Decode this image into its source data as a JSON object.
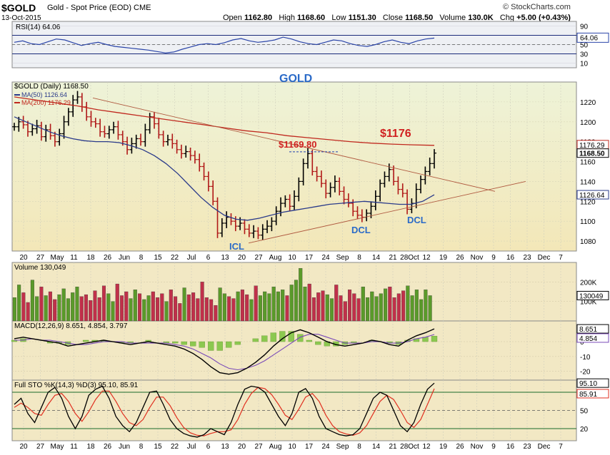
{
  "header": {
    "symbol": "$GOLD",
    "description": "Gold - Spot Price (EOD)",
    "exchange": "CME",
    "date": "13-Oct-2015",
    "brand": "© StockCharts.com",
    "open_label": "Open",
    "open": "1162.80",
    "high_label": "High",
    "high": "1168.60",
    "low_label": "Low",
    "low": "1151.30",
    "close_label": "Close",
    "close": "1168.50",
    "volume_label": "Volume",
    "volume": "130.0K",
    "chg_label": "Chg",
    "chg": "+5.00 (+0.43%)"
  },
  "colors": {
    "price_bg": "#f2efc8",
    "panel_bg": "#f2e8c4",
    "up_bar": "#5a9a2a",
    "down_bar": "#c0304a",
    "ma50": "#2a3a8a",
    "ma200": "#c0281e",
    "annotation_blue": "#2a6ac8",
    "annotation_red": "#d02020",
    "trendline": "#b05a40"
  },
  "chart_data": [
    {
      "type": "line",
      "panel": "rsi",
      "legend": "RSI(14) 64.06",
      "value_label": "64.06",
      "y_ticks": [
        "90",
        "70",
        "50",
        "30",
        "10"
      ],
      "ylim": [
        0,
        100
      ],
      "levels": [
        70,
        30
      ],
      "last": 64.06
    },
    {
      "type": "ohlc",
      "panel": "price",
      "legend": {
        "symbol": "$GOLD (Daily) 1168.50",
        "ma50": "MA(50) 1126.64",
        "ma200": "MA(200) 1176.29"
      },
      "y_ticks": [
        "1220",
        "1200",
        "1180",
        "1160",
        "1140",
        "1120",
        "1100",
        "1080"
      ],
      "ylim": [
        1070,
        1240
      ],
      "right_labels": [
        "1176.29",
        "1168.50",
        "1126.64"
      ],
      "annotations": {
        "title": "GOLD",
        "ma200_value": "$1176",
        "peak": "$1169.80",
        "icl": "ICL",
        "dcl1": "DCL",
        "dcl2": "DCL"
      },
      "close_path": [
        1195,
        1200,
        1197,
        1190,
        1193,
        1196,
        1185,
        1192,
        1186,
        1180,
        1188,
        1200,
        1210,
        1222,
        1225,
        1215,
        1205,
        1200,
        1198,
        1190,
        1188,
        1192,
        1195,
        1187,
        1180,
        1172,
        1178,
        1183,
        1180,
        1192,
        1205,
        1198,
        1187,
        1180,
        1182,
        1178,
        1172,
        1168,
        1170,
        1166,
        1162,
        1155,
        1145,
        1135,
        1120,
        1088,
        1098,
        1104,
        1100,
        1095,
        1098,
        1092,
        1088,
        1090,
        1086,
        1092,
        1095,
        1100,
        1110,
        1118,
        1122,
        1115,
        1125,
        1140,
        1158,
        1168,
        1150,
        1145,
        1138,
        1128,
        1134,
        1140,
        1130,
        1122,
        1118,
        1110,
        1106,
        1104,
        1108,
        1115,
        1125,
        1138,
        1145,
        1152,
        1140,
        1132,
        1128,
        1112,
        1118,
        1132,
        1142,
        1150,
        1158,
        1168.5
      ],
      "ma50_path": [
        1205,
        1200,
        1195,
        1190,
        1186,
        1183,
        1181,
        1180,
        1180,
        1179,
        1176,
        1172,
        1166,
        1158,
        1148,
        1136,
        1124,
        1114,
        1106,
        1102,
        1101,
        1103,
        1106,
        1109,
        1111,
        1113,
        1115,
        1117,
        1118,
        1119,
        1120,
        1119,
        1118,
        1117,
        1117,
        1120,
        1126.6
      ],
      "ma200_path": [
        1225,
        1222,
        1219,
        1216,
        1212,
        1209,
        1206,
        1203,
        1200,
        1197,
        1194,
        1191,
        1189,
        1186,
        1184,
        1182,
        1180,
        1178.5,
        1177.5,
        1176.8,
        1176.3
      ],
      "x_labels": [
        "20",
        "27",
        "May",
        "11",
        "18",
        "26",
        "Jun",
        "8",
        "15",
        "22",
        "Jul",
        "6",
        "13",
        "20",
        "27",
        "Aug",
        "10",
        "17",
        "24",
        "Sep",
        "8",
        "14",
        "21",
        "28Oct",
        "12",
        "19",
        "26",
        "Nov",
        "9",
        "16",
        "23",
        "Dec",
        "7"
      ]
    },
    {
      "type": "bar",
      "panel": "volume",
      "legend": "Volume 130,049",
      "value_label": "130049",
      "y_ticks": [
        "200K",
        "100K"
      ],
      "ylim": [
        0,
        300000
      ],
      "values": [
        120000,
        185000,
        145000,
        95000,
        210000,
        125000,
        175000,
        130000,
        150000,
        110000,
        135000,
        165000,
        115000,
        145000,
        175000,
        125000,
        135000,
        105000,
        155000,
        120000,
        180000,
        140000,
        100000,
        190000,
        130000,
        150000,
        115000,
        160000,
        140000,
        110000,
        130000,
        150000,
        120000,
        140000,
        100000,
        160000,
        125000,
        90000,
        170000,
        135000,
        145000,
        115000,
        200000,
        120000,
        110000,
        80000,
        170000,
        140000,
        125000,
        115000,
        150000,
        160000,
        135000,
        110000,
        180000,
        130000,
        150000,
        140000,
        175000,
        150000,
        160000,
        130000,
        185000,
        210000,
        270000,
        175000,
        190000,
        120000,
        145000,
        155000,
        135000,
        115000,
        185000,
        130000,
        100000,
        160000,
        140000,
        115000,
        175000,
        120000,
        150000,
        125000,
        140000,
        165000,
        175000,
        120000,
        140000,
        155000,
        180000,
        130000,
        160000,
        110000,
        160000,
        130049
      ]
    },
    {
      "type": "line",
      "panel": "macd",
      "legend": "MACD(12,26,9) 8.651, 4.854, 3.797",
      "y_ticks": [
        "0",
        "-10",
        "-20"
      ],
      "right_labels": [
        "8.651",
        "4.854"
      ],
      "ylim": [
        -26,
        14
      ],
      "macd": [
        2,
        3,
        2,
        1,
        0,
        -1,
        -3,
        -2,
        -1,
        0,
        1,
        0,
        -1,
        -2,
        -1,
        0,
        -1,
        -2,
        -3,
        -5,
        -8,
        -12,
        -17,
        -21,
        -22,
        -21,
        -18,
        -14,
        -9,
        -3,
        2,
        6,
        8,
        6,
        3,
        0,
        -2,
        -3,
        -2,
        -1,
        1,
        0,
        -2,
        -3,
        1,
        4,
        6,
        8.651
      ],
      "signal": [
        1,
        1,
        2,
        1,
        1,
        0,
        -1,
        -2,
        -2,
        -1,
        0,
        0,
        0,
        -1,
        -1,
        -1,
        -1,
        -1,
        -2,
        -3,
        -5,
        -8,
        -11,
        -15,
        -18,
        -19,
        -18,
        -16,
        -13,
        -9,
        -5,
        -1,
        3,
        5,
        5,
        3,
        1,
        -1,
        -1,
        -1,
        0,
        0,
        -1,
        -1,
        0,
        2,
        3,
        4.854
      ],
      "histogram": [
        1,
        2,
        0,
        0,
        -1,
        -1,
        -2,
        0,
        1,
        1,
        1,
        0,
        -1,
        -1,
        0,
        1,
        0,
        -1,
        -1,
        -2,
        -3,
        -4,
        -6,
        -6,
        -4,
        -2,
        0,
        2,
        4,
        6,
        7,
        7,
        5,
        1,
        -2,
        -3,
        -3,
        -2,
        -1,
        0,
        1,
        0,
        -1,
        -2,
        1,
        2,
        3,
        3.797
      ]
    },
    {
      "type": "line",
      "panel": "stochastic",
      "legend": "Full STO %K(14,3) %D(3) 95.10, 85.91",
      "y_ticks": [
        "80",
        "50",
        "20"
      ],
      "right_labels": [
        "95.10",
        "85.91"
      ],
      "ylim": [
        0,
        100
      ],
      "levels": [
        80,
        50,
        20
      ],
      "k": [
        60,
        70,
        45,
        30,
        55,
        80,
        88,
        70,
        40,
        20,
        40,
        75,
        85,
        90,
        70,
        40,
        25,
        15,
        30,
        55,
        80,
        82,
        60,
        35,
        20,
        12,
        8,
        6,
        10,
        20,
        15,
        10,
        30,
        60,
        85,
        90,
        88,
        80,
        60,
        40,
        25,
        45,
        80,
        86,
        70,
        40,
        20,
        15,
        10,
        8,
        10,
        20,
        45,
        70,
        80,
        75,
        50,
        25,
        15,
        30,
        60,
        85,
        95.1
      ],
      "d": [
        55,
        62,
        55,
        45,
        42,
        60,
        75,
        78,
        65,
        45,
        32,
        48,
        68,
        82,
        82,
        65,
        45,
        30,
        25,
        35,
        55,
        72,
        72,
        58,
        38,
        22,
        13,
        9,
        8,
        12,
        15,
        15,
        18,
        35,
        60,
        78,
        88,
        86,
        76,
        60,
        42,
        35,
        52,
        72,
        78,
        65,
        42,
        25,
        15,
        11,
        9,
        13,
        25,
        45,
        65,
        75,
        68,
        50,
        30,
        22,
        35,
        60,
        85.91
      ],
      "x_labels": [
        "20",
        "27",
        "May",
        "11",
        "18",
        "26",
        "Jun",
        "8",
        "15",
        "22",
        "Jul",
        "6",
        "13",
        "20",
        "27",
        "Aug",
        "10",
        "17",
        "24",
        "Sep",
        "8",
        "14",
        "21",
        "28Oct",
        "12",
        "19",
        "26",
        "Nov",
        "9",
        "16",
        "23",
        "Dec",
        "7"
      ]
    }
  ]
}
